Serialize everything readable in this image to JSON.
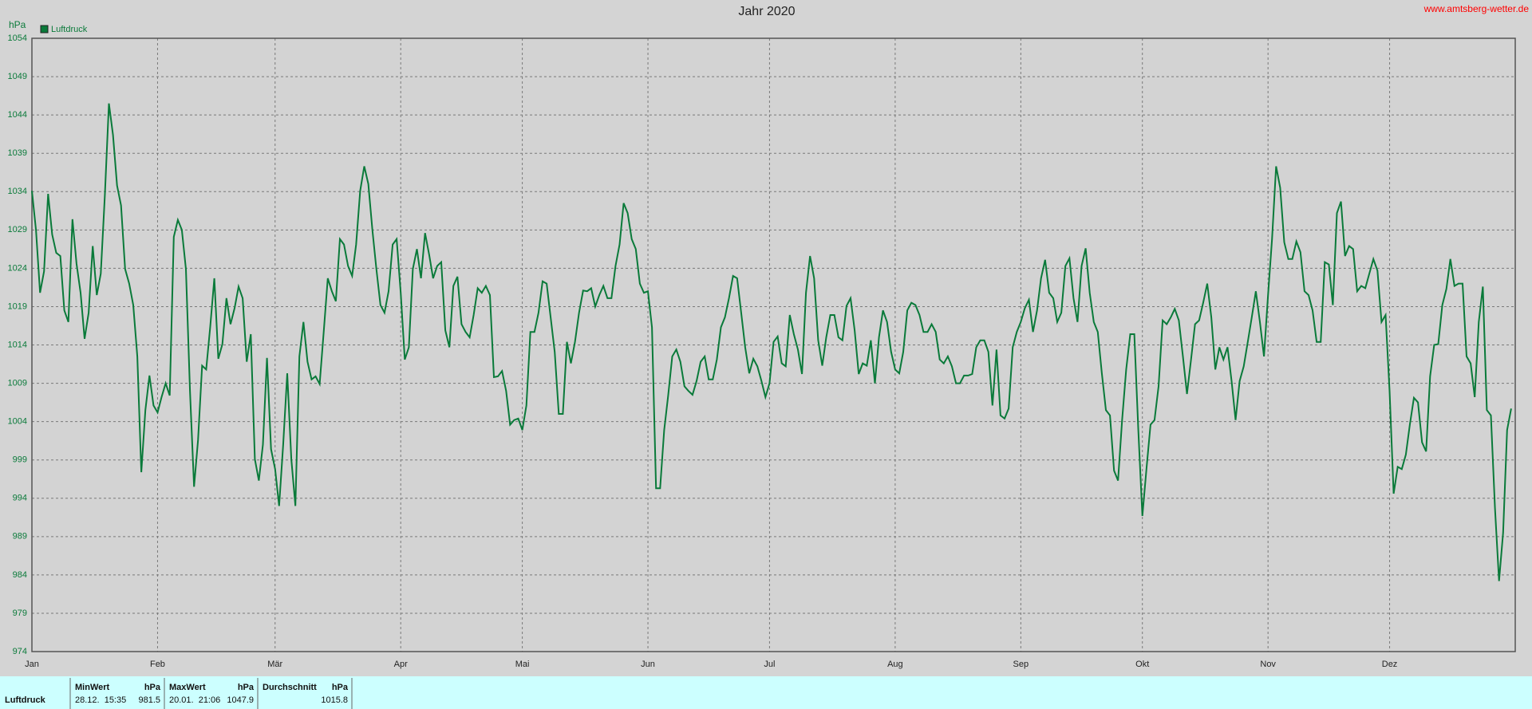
{
  "chart_data": {
    "type": "line",
    "title": "Jahr 2020",
    "source": "www.amtsberg-wetter.de",
    "ylabel": "hPa",
    "x": [
      0,
      1,
      2,
      3,
      4,
      5,
      6,
      7,
      8,
      9,
      10,
      11,
      12,
      13,
      14,
      15,
      16,
      17,
      18,
      19,
      20,
      21,
      22,
      23,
      24,
      25,
      26,
      27,
      28,
      29,
      30,
      31,
      32,
      33,
      34,
      35,
      36,
      37,
      38,
      39,
      40,
      41,
      42,
      43,
      44,
      45,
      46,
      47,
      48,
      49,
      50,
      51,
      52,
      53,
      54,
      55,
      56,
      57,
      58,
      59,
      60,
      61,
      62,
      63,
      64,
      65,
      66,
      67,
      68,
      69,
      70,
      71,
      72,
      73,
      74,
      75,
      76,
      77,
      78,
      79,
      80,
      81,
      82,
      83,
      84,
      85,
      86,
      87,
      88,
      89,
      90,
      91,
      92,
      93,
      94,
      95,
      96,
      97,
      98,
      99,
      100,
      101,
      102,
      103,
      104,
      105,
      106,
      107,
      108,
      109,
      110,
      111,
      112,
      113,
      114,
      115,
      116,
      117,
      118,
      119,
      120,
      121,
      122,
      123,
      124,
      125,
      126,
      127,
      128,
      129,
      130,
      131,
      132,
      133,
      134,
      135,
      136,
      137,
      138,
      139,
      140,
      141,
      142,
      143,
      144,
      145,
      146,
      147,
      148,
      149,
      150,
      151,
      152,
      153,
      154,
      155,
      156,
      157,
      158,
      159,
      160,
      161,
      162,
      163,
      164,
      165,
      166,
      167,
      168,
      169,
      170,
      171,
      172,
      173,
      174,
      175,
      176,
      177,
      178,
      179,
      180,
      181,
      182,
      183,
      184,
      185,
      186,
      187,
      188,
      189,
      190,
      191,
      192,
      193,
      194,
      195,
      196,
      197,
      198,
      199,
      200,
      201,
      202,
      203,
      204,
      205,
      206,
      207,
      208,
      209,
      210,
      211,
      212,
      213,
      214,
      215,
      216,
      217,
      218,
      219,
      220,
      221,
      222,
      223,
      224,
      225,
      226,
      227,
      228,
      229,
      230,
      231,
      232,
      233,
      234,
      235,
      236,
      237,
      238,
      239,
      240,
      241,
      242,
      243,
      244,
      245,
      246,
      247,
      248,
      249,
      250,
      251,
      252,
      253,
      254,
      255,
      256,
      257,
      258,
      259,
      260,
      261,
      262,
      263,
      264,
      265,
      266,
      267,
      268,
      269,
      270,
      271,
      272,
      273,
      274,
      275,
      276,
      277,
      278,
      279,
      280,
      281,
      282,
      283,
      284,
      285,
      286,
      287,
      288,
      289,
      290,
      291,
      292,
      293,
      294,
      295,
      296,
      297,
      298,
      299,
      300,
      301,
      302,
      303,
      304,
      305,
      306,
      307,
      308,
      309,
      310,
      311,
      312,
      313,
      314,
      315,
      316,
      317,
      318,
      319,
      320,
      321,
      322,
      323,
      324,
      325,
      326,
      327,
      328,
      329,
      330,
      331,
      332,
      333,
      334,
      335,
      336,
      337,
      338,
      339,
      340,
      341,
      342,
      343,
      344,
      345,
      346,
      347,
      348,
      349,
      350,
      351,
      352,
      353,
      354,
      355,
      356,
      357,
      358,
      359,
      360,
      361,
      362,
      363,
      364,
      365
    ],
    "series": [
      {
        "name": "Luftdruck",
        "color": "#0a7a3a",
        "values": [
          1034.1,
          1029,
          1020.8,
          1023.6,
          1033.7,
          1028.4,
          1026,
          1025.6,
          1018.5,
          1017,
          1030.4,
          1024.6,
          1020.8,
          1014.8,
          1018.2,
          1026.9,
          1020.5,
          1023.3,
          1033.5,
          1045.5,
          1041.4,
          1034.8,
          1032.2,
          1023.9,
          1022,
          1019.2,
          1012.5,
          997.4,
          1005.5,
          1010,
          1006.1,
          1005.2,
          1007.2,
          1009,
          1007.4,
          1028.1,
          1030.3,
          1029,
          1023.9,
          1008,
          995.5,
          1001.6,
          1011.3,
          1010.8,
          1016.4,
          1022.7,
          1012.2,
          1014.1,
          1020.1,
          1016.7,
          1018.8,
          1021.6,
          1020.1,
          1011.8,
          1015.4,
          999.1,
          996.3,
          1001,
          1012.3,
          1000.4,
          997.8,
          993,
          1001,
          1010.3,
          999.1,
          993,
          1012.5,
          1017,
          1011.8,
          1009.5,
          1009.9,
          1008.9,
          1015.7,
          1022.7,
          1021,
          1019.7,
          1027.8,
          1027.1,
          1024.3,
          1023,
          1027.1,
          1034.1,
          1037.3,
          1035,
          1029,
          1023.9,
          1019.2,
          1018.2,
          1021,
          1027.1,
          1027.8,
          1020.8,
          1012.1,
          1013.7,
          1023.9,
          1026.5,
          1022.7,
          1028.6,
          1025.8,
          1022.7,
          1024.3,
          1024.8,
          1015.9,
          1013.7,
          1021.7,
          1022.9,
          1016.7,
          1015.7,
          1015,
          1017.9,
          1021.4,
          1020.8,
          1021.7,
          1020.5,
          1009.8,
          1009.9,
          1010.6,
          1008,
          1003.6,
          1004.2,
          1004.4,
          1002.9,
          1006.1,
          1015.7,
          1015.7,
          1018.2,
          1022.3,
          1022,
          1017.6,
          1013.1,
          1005,
          1005,
          1014.4,
          1011.6,
          1014.4,
          1018.2,
          1021.1,
          1021,
          1021.4,
          1019,
          1020.5,
          1021.7,
          1020.1,
          1020.1,
          1024.3,
          1027.1,
          1032.5,
          1031.2,
          1027.8,
          1026.5,
          1022,
          1020.8,
          1021,
          1016.3,
          995.3,
          995.3,
          1002.9,
          1007.4,
          1012.5,
          1013.4,
          1011.8,
          1008.6,
          1008,
          1007.5,
          1009.3,
          1011.8,
          1012.5,
          1009.5,
          1009.5,
          1012.1,
          1016.3,
          1017.6,
          1020.1,
          1023,
          1022.7,
          1018.2,
          1013.7,
          1010.3,
          1012.2,
          1011.2,
          1009.3,
          1007.2,
          1009,
          1014.4,
          1015.1,
          1011.6,
          1011.2,
          1017.9,
          1015.4,
          1013.4,
          1010.2,
          1020.8,
          1025.6,
          1022.7,
          1014.6,
          1011.3,
          1015,
          1017.9,
          1017.9,
          1015,
          1014.6,
          1019.1,
          1020.1,
          1015.9,
          1010.2,
          1011.6,
          1011.3,
          1014.6,
          1009,
          1015,
          1018.5,
          1017,
          1013.1,
          1010.8,
          1010.3,
          1013.1,
          1018.5,
          1019.5,
          1019.2,
          1017.9,
          1015.7,
          1015.7,
          1016.7,
          1015.7,
          1012.1,
          1011.6,
          1012.5,
          1011.2,
          1009,
          1009,
          1010,
          1010,
          1010.2,
          1013.7,
          1014.6,
          1014.6,
          1013.1,
          1006.1,
          1013.4,
          1004.8,
          1004.4,
          1005.7,
          1013.7,
          1015.7,
          1017,
          1018.8,
          1019.9,
          1015.7,
          1018.5,
          1022.7,
          1025.1,
          1020.8,
          1020.1,
          1017,
          1018.2,
          1024.3,
          1025.3,
          1020.1,
          1017,
          1024.3,
          1026.6,
          1020.8,
          1017,
          1015.7,
          1010.3,
          1005.5,
          1004.8,
          997.6,
          996.3,
          1004.2,
          1010.8,
          1015.4,
          1015.4,
          1002.9,
          991.7,
          997.8,
          1003.6,
          1004.2,
          1008.6,
          1017.2,
          1016.7,
          1017.6,
          1018.7,
          1017.2,
          1012.5,
          1007.6,
          1012.1,
          1016.7,
          1017.2,
          1019.5,
          1022,
          1017.6,
          1010.8,
          1013.7,
          1012.1,
          1013.7,
          1009.3,
          1004.2,
          1009.3,
          1011.2,
          1014.4,
          1017.6,
          1021,
          1017,
          1012.5,
          1020.5,
          1027.8,
          1037.3,
          1034.5,
          1027.4,
          1025.2,
          1025.2,
          1027.5,
          1026.1,
          1021,
          1020.5,
          1018.5,
          1014.4,
          1014.4,
          1024.8,
          1024.5,
          1019.2,
          1031.2,
          1032.7,
          1025.6,
          1026.9,
          1026.5,
          1021,
          1021.7,
          1021.4,
          1023.3,
          1025.2,
          1023.7,
          1017,
          1017.9,
          1008,
          994.6,
          998.1,
          997.8,
          999.7,
          1003.6,
          1007.1,
          1006.5,
          1001.3,
          1000.1,
          1009.9,
          1014,
          1014.1,
          1019.2,
          1021.3,
          1025.2,
          1021.7,
          1022,
          1022,
          1012.5,
          1011.6,
          1007.2,
          1017,
          1021.6,
          1005.5,
          1004.8,
          992.7,
          983.2,
          989.5,
          1002.9,
          1005.7
        ]
      }
    ],
    "xlim": [
      0,
      366
    ],
    "xticks": [
      {
        "value": 0,
        "label": "Jan"
      },
      {
        "value": 31,
        "label": "Feb"
      },
      {
        "value": 60,
        "label": "Mär"
      },
      {
        "value": 91,
        "label": "Apr"
      },
      {
        "value": 121,
        "label": "Mai"
      },
      {
        "value": 152,
        "label": "Jun"
      },
      {
        "value": 182,
        "label": "Jul"
      },
      {
        "value": 213,
        "label": "Aug"
      },
      {
        "value": 244,
        "label": "Sep"
      },
      {
        "value": 274,
        "label": "Okt"
      },
      {
        "value": 305,
        "label": "Nov"
      },
      {
        "value": 335,
        "label": "Dez"
      }
    ],
    "ylim": [
      974,
      1054
    ],
    "yticks": [
      974,
      979,
      984,
      989,
      994,
      999,
      1004,
      1009,
      1014,
      1019,
      1024,
      1029,
      1034,
      1039,
      1044,
      1049,
      1054
    ],
    "grid": true,
    "legend": "top-left"
  },
  "footer": {
    "name": "Luftdruck",
    "cells": [
      {
        "head": "MinWert",
        "unit": "hPa",
        "time": "28.12.  15:35",
        "value": "981.5"
      },
      {
        "head": "MaxWert",
        "unit": "hPa",
        "time": "20.01.  21:06",
        "value": "1047.9"
      },
      {
        "head": "Durchschnitt",
        "unit": "hPa",
        "time": "",
        "value": "1015.8"
      }
    ]
  }
}
